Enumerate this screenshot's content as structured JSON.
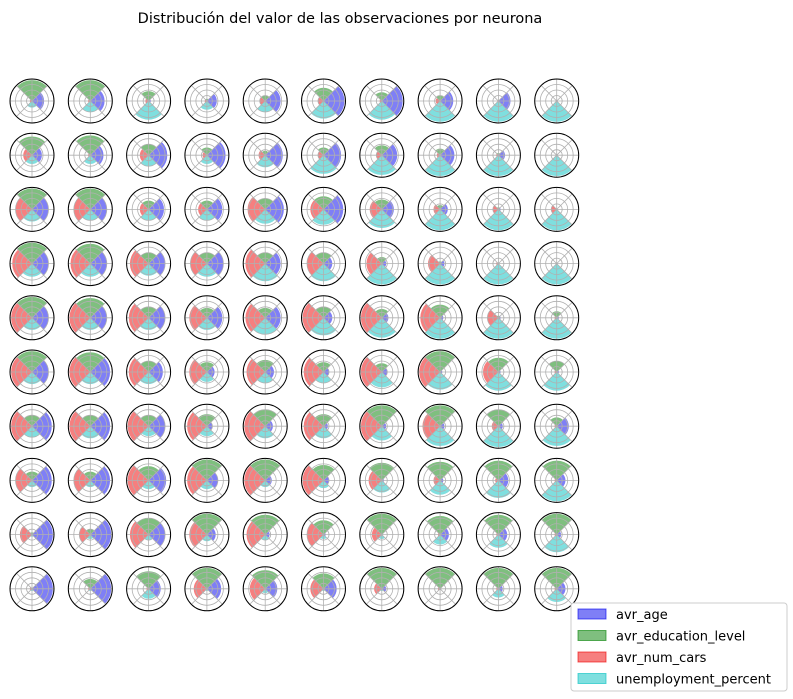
{
  "chart_data": {
    "type": "polar-bar-grid",
    "title": "Distribución del valor de las observaciones por neurona",
    "grid": {
      "rows": 10,
      "cols": 10
    },
    "radial_max": 1.0,
    "radial_gridlines": [
      0.25,
      0.5,
      0.75
    ],
    "legend": {
      "placement": "bottom-right"
    },
    "series": [
      {
        "name": "avr_age",
        "color": "#0000ee",
        "direction": "east"
      },
      {
        "name": "avr_education_level",
        "color": "#008000",
        "direction": "north"
      },
      {
        "name": "avr_num_cars",
        "color": "#ee0000",
        "direction": "west"
      },
      {
        "name": "unemployment_percent",
        "color": "#00c0c0",
        "direction": "south"
      }
    ],
    "cells": [
      [
        [
          0.55,
          0.95,
          0.1,
          0.3
        ],
        [
          0.65,
          0.95,
          0.1,
          0.5
        ],
        [
          0.1,
          0.45,
          0.15,
          0.85
        ],
        [
          0.45,
          0.1,
          0.1,
          0.4
        ],
        [
          0.7,
          0.25,
          0.25,
          0.5
        ],
        [
          0.95,
          0.6,
          0.25,
          0.8
        ],
        [
          0.95,
          0.4,
          0.1,
          0.85
        ],
        [
          0.6,
          0.25,
          0.2,
          0.95
        ],
        [
          0.55,
          0.05,
          0.05,
          0.95
        ],
        [
          0.05,
          0.05,
          0.05,
          0.95
        ]
      ],
      [
        [
          0.45,
          0.85,
          0.4,
          0.4
        ],
        [
          0.6,
          0.9,
          0.1,
          0.4
        ],
        [
          0.85,
          0.5,
          0.4,
          0.5
        ],
        [
          0.85,
          0.35,
          0.2,
          0.4
        ],
        [
          0.8,
          0.2,
          0.3,
          0.55
        ],
        [
          0.8,
          0.35,
          0.25,
          0.85
        ],
        [
          0.7,
          0.45,
          0.25,
          0.9
        ],
        [
          0.65,
          0.3,
          0.15,
          0.95
        ],
        [
          0.3,
          0.1,
          0.1,
          0.95
        ],
        [
          0.05,
          0.05,
          0.05,
          0.95
        ]
      ],
      [
        [
          0.75,
          0.95,
          0.75,
          0.55
        ],
        [
          0.75,
          0.95,
          0.75,
          0.5
        ],
        [
          0.7,
          0.4,
          0.4,
          0.5
        ],
        [
          0.7,
          0.4,
          0.4,
          0.5
        ],
        [
          0.85,
          0.5,
          0.8,
          0.65
        ],
        [
          0.9,
          0.6,
          0.6,
          0.7
        ],
        [
          0.55,
          0.45,
          0.55,
          0.85
        ],
        [
          0.35,
          0.2,
          0.3,
          0.95
        ],
        [
          0.1,
          0.1,
          0.25,
          0.95
        ],
        [
          0.05,
          0.05,
          0.25,
          0.95
        ]
      ],
      [
        [
          0.75,
          0.95,
          0.9,
          0.6
        ],
        [
          0.75,
          0.9,
          0.9,
          0.6
        ],
        [
          0.75,
          0.5,
          0.85,
          0.55
        ],
        [
          0.75,
          0.5,
          0.75,
          0.6
        ],
        [
          0.7,
          0.5,
          0.9,
          0.8
        ],
        [
          0.4,
          0.5,
          0.75,
          0.8
        ],
        [
          0.2,
          0.3,
          0.7,
          0.95
        ],
        [
          0.2,
          0.1,
          0.55,
          0.95
        ],
        [
          0.05,
          0.05,
          0.1,
          0.95
        ],
        [
          0.05,
          0.05,
          0.05,
          0.95
        ]
      ],
      [
        [
          0.75,
          0.95,
          0.95,
          0.55
        ],
        [
          0.75,
          0.9,
          0.95,
          0.55
        ],
        [
          0.75,
          0.5,
          0.9,
          0.55
        ],
        [
          0.7,
          0.45,
          0.8,
          0.55
        ],
        [
          0.7,
          0.45,
          0.9,
          0.75
        ],
        [
          0.4,
          0.5,
          0.95,
          0.8
        ],
        [
          0.3,
          0.4,
          0.95,
          0.9
        ],
        [
          0.15,
          0.6,
          0.9,
          0.95
        ],
        [
          0.1,
          0.1,
          0.5,
          0.95
        ],
        [
          0.1,
          0.3,
          0.1,
          0.95
        ]
      ],
      [
        [
          0.75,
          0.95,
          0.95,
          0.55
        ],
        [
          0.9,
          0.9,
          0.95,
          0.55
        ],
        [
          0.65,
          0.5,
          0.9,
          0.55
        ],
        [
          0.35,
          0.45,
          0.8,
          0.45
        ],
        [
          0.4,
          0.55,
          0.85,
          0.5
        ],
        [
          0.25,
          0.45,
          0.9,
          0.5
        ],
        [
          0.25,
          0.4,
          0.95,
          0.7
        ],
        [
          0.1,
          0.95,
          0.95,
          0.8
        ],
        [
          0.1,
          0.65,
          0.7,
          0.85
        ],
        [
          0.1,
          0.5,
          0.1,
          0.85
        ]
      ],
      [
        [
          0.9,
          0.5,
          0.95,
          0.5
        ],
        [
          0.9,
          0.5,
          0.95,
          0.55
        ],
        [
          0.75,
          0.5,
          0.95,
          0.45
        ],
        [
          0.25,
          0.55,
          0.9,
          0.45
        ],
        [
          0.35,
          0.75,
          0.95,
          0.55
        ],
        [
          0.2,
          0.55,
          0.9,
          0.55
        ],
        [
          0.2,
          0.95,
          0.95,
          0.65
        ],
        [
          0.2,
          0.95,
          0.8,
          0.9
        ],
        [
          0.2,
          0.75,
          0.3,
          0.95
        ],
        [
          0.55,
          0.4,
          0.1,
          0.9
        ]
      ],
      [
        [
          0.9,
          0.4,
          0.75,
          0.3
        ],
        [
          0.9,
          0.4,
          0.75,
          0.3
        ],
        [
          0.8,
          0.65,
          0.95,
          0.4
        ],
        [
          0.5,
          0.95,
          0.9,
          0.4
        ],
        [
          0.3,
          0.95,
          0.95,
          0.3
        ],
        [
          0.25,
          0.7,
          0.95,
          0.35
        ],
        [
          0.1,
          0.8,
          0.6,
          0.55
        ],
        [
          0.15,
          0.85,
          0.3,
          0.65
        ],
        [
          0.45,
          0.9,
          0.15,
          0.8
        ],
        [
          0.4,
          0.9,
          0.1,
          0.95
        ]
      ],
      [
        [
          0.95,
          0.1,
          0.55,
          0.1
        ],
        [
          0.95,
          0.25,
          0.5,
          0.2
        ],
        [
          0.75,
          0.75,
          0.85,
          0.25
        ],
        [
          0.4,
          0.95,
          0.8,
          0.3
        ],
        [
          0.2,
          0.9,
          0.85,
          0.25
        ],
        [
          0.1,
          0.65,
          0.75,
          0.2
        ],
        [
          0.05,
          0.95,
          0.45,
          0.2
        ],
        [
          0.4,
          0.85,
          0.1,
          0.45
        ],
        [
          0.4,
          0.9,
          0.1,
          0.6
        ],
        [
          0.2,
          0.95,
          0.1,
          0.8
        ]
      ],
      [
        [
          0.95,
          0.05,
          0.1,
          0.1
        ],
        [
          0.95,
          0.45,
          0.1,
          0.1
        ],
        [
          0.55,
          0.8,
          0.1,
          0.45
        ],
        [
          0.65,
          0.95,
          0.6,
          0.1
        ],
        [
          0.55,
          0.85,
          0.7,
          0.2
        ],
        [
          0.6,
          0.7,
          0.6,
          0.1
        ],
        [
          0.2,
          0.95,
          0.35,
          0.1
        ],
        [
          0.05,
          0.95,
          0.1,
          0.05
        ],
        [
          0.2,
          0.95,
          0.1,
          0.4
        ],
        [
          0.4,
          0.95,
          0.1,
          0.6
        ]
      ]
    ]
  }
}
